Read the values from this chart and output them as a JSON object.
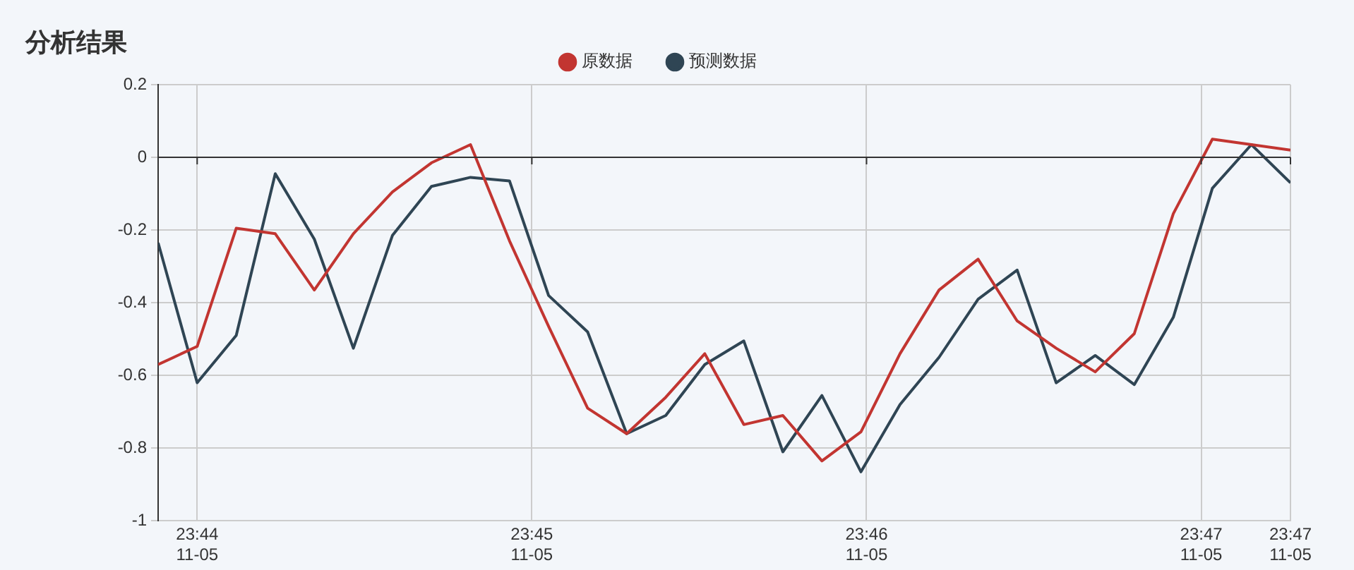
{
  "chart_data": {
    "type": "line",
    "title": "分析结果",
    "x": [
      "--11-05T23:43:53",
      "--11-05T23:44:00",
      "--11-05T23:44:07",
      "--11-05T23:44:14",
      "--11-05T23:44:21",
      "--11-05T23:44:28",
      "--11-05T23:44:35",
      "--11-05T23:44:42",
      "--11-05T23:44:49",
      "--11-05T23:44:56",
      "--11-05T23:45:03",
      "--11-05T23:45:10",
      "--11-05T23:45:17",
      "--11-05T23:45:24",
      "--11-05T23:45:31",
      "--11-05T23:45:38",
      "--11-05T23:45:45",
      "--11-05T23:45:52",
      "--11-05T23:45:59",
      "--11-05T23:46:06",
      "--11-05T23:46:13",
      "--11-05T23:46:20",
      "--11-05T23:46:27",
      "--11-05T23:46:34",
      "--11-05T23:46:41",
      "--11-05T23:46:48",
      "--11-05T23:46:55",
      "--11-05T23:47:02",
      "--11-05T23:47:09",
      "--11-05T23:47:16"
    ],
    "series": [
      {
        "name": "原数据",
        "color": "#c23531",
        "values": [
          -0.57,
          -0.52,
          -0.195,
          -0.21,
          -0.365,
          -0.21,
          -0.095,
          -0.015,
          0.035,
          -0.23,
          -0.465,
          -0.69,
          -0.76,
          -0.66,
          -0.54,
          -0.735,
          -0.71,
          -0.835,
          -0.755,
          -0.54,
          -0.365,
          -0.28,
          -0.45,
          -0.525,
          -0.59,
          -0.485,
          -0.155,
          0.05,
          0.035,
          0.02
        ]
      },
      {
        "name": "预测数据",
        "color": "#2f4554",
        "values": [
          -0.235,
          -0.62,
          -0.49,
          -0.045,
          -0.225,
          -0.525,
          -0.215,
          -0.08,
          -0.055,
          -0.065,
          -0.38,
          -0.48,
          -0.76,
          -0.71,
          -0.57,
          -0.505,
          -0.81,
          -0.655,
          -0.865,
          -0.68,
          -0.55,
          -0.39,
          -0.31,
          -0.62,
          -0.545,
          -0.625,
          -0.44,
          -0.085,
          0.035,
          -0.07
        ]
      }
    ],
    "xlim": [
      "--11-05T23:43:53",
      "--11-05T23:47:16"
    ],
    "xticks": [
      {
        "value": "--11-05T23:44",
        "label": "23:44\n11-05"
      },
      {
        "value": "--11-05T23:45",
        "label": "23:45\n11-05"
      },
      {
        "value": "--11-05T23:46",
        "label": "23:46\n11-05"
      },
      {
        "value": "--11-05T23:47",
        "label": "23:47\n11-05"
      },
      {
        "value": "--11-05T23:47:16",
        "label": "23:47\n11-05"
      }
    ],
    "ylim": [
      -1,
      0.2
    ],
    "yticks": [
      -1,
      -0.8,
      -0.6,
      -0.4,
      -0.2,
      0,
      0.2
    ],
    "ref_lines": [
      {
        "axis": "y",
        "value": 0,
        "color": "#333333"
      }
    ],
    "grid": true,
    "legend": "top",
    "marker": "none",
    "line_style": "solid"
  }
}
